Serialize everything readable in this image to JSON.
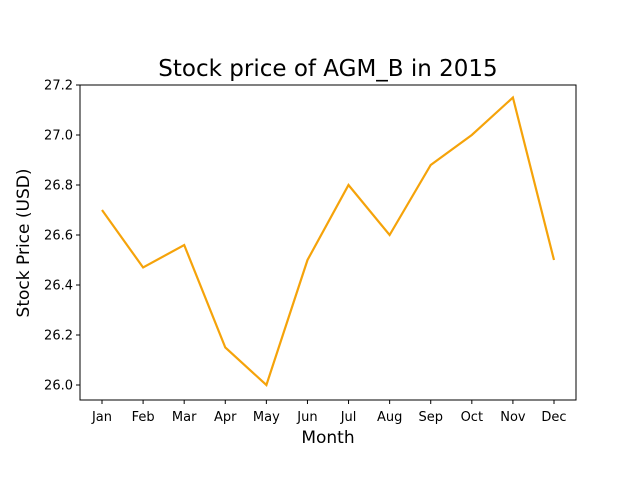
{
  "chart_data": {
    "type": "line",
    "title": "Stock price of AGM_B in 2015",
    "xlabel": "Month",
    "ylabel": "Stock Price (USD)",
    "categories": [
      "Jan",
      "Feb",
      "Mar",
      "Apr",
      "May",
      "Jun",
      "Jul",
      "Aug",
      "Sep",
      "Oct",
      "Nov",
      "Dec"
    ],
    "series": [
      {
        "values": [
          26.7,
          26.47,
          26.56,
          26.15,
          26.0,
          26.5,
          26.8,
          26.6,
          26.88,
          27.0,
          27.15,
          26.5
        ]
      }
    ],
    "yticks": [
      "26.0",
      "26.2",
      "26.4",
      "26.6",
      "26.8",
      "27.0",
      "27.2"
    ],
    "ylim": [
      25.94,
      27.2
    ],
    "grid": false,
    "colors": {
      "line": "#f5a30a",
      "axes": "#000000"
    }
  }
}
